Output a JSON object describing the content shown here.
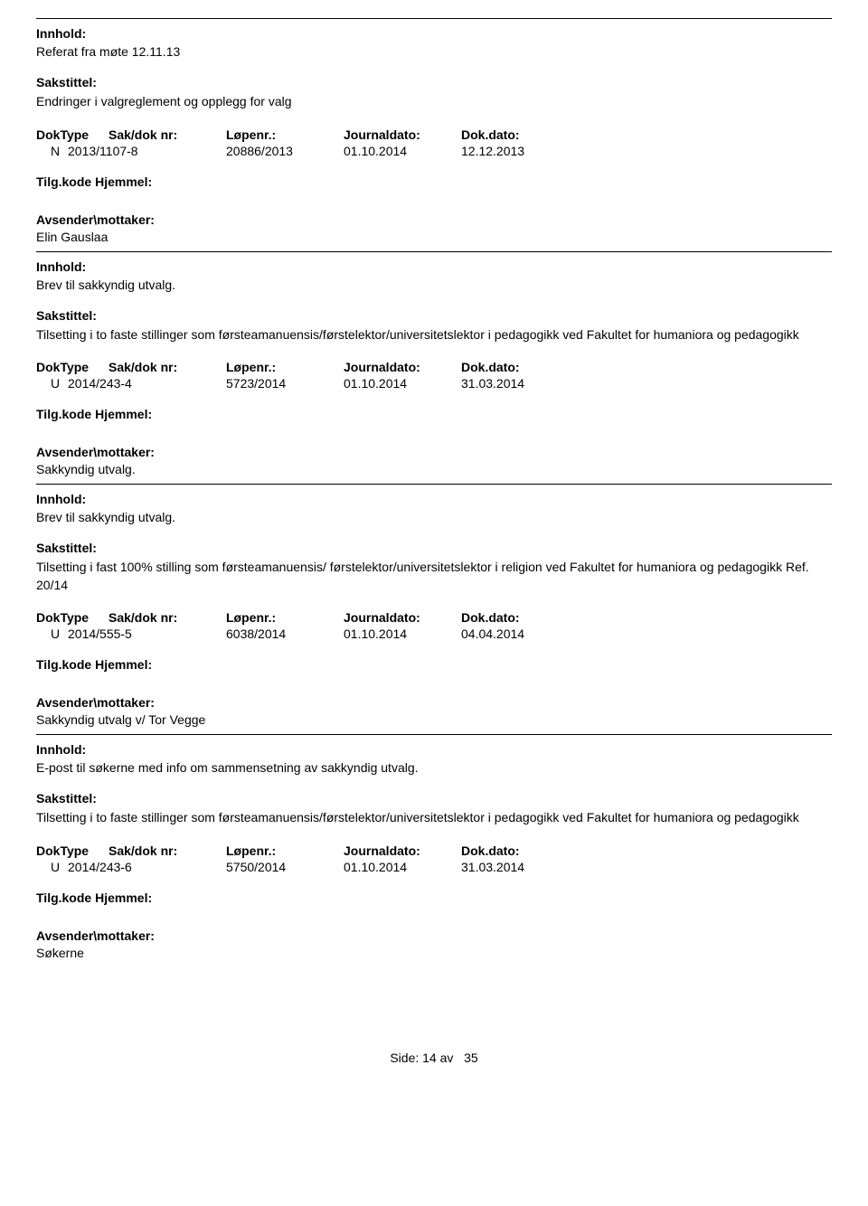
{
  "labels": {
    "innhold": "Innhold:",
    "sakstittel": "Sakstittel:",
    "doktype": "DokType",
    "sakdoknr": "Sak/dok nr:",
    "lopenr": "Løpenr.:",
    "journaldato": "Journaldato:",
    "dokdato": "Dok.dato:",
    "tilgkode": "Tilg.kode",
    "hjemmel": "Hjemmel:",
    "avsender": "Avsender\\mottaker:"
  },
  "entries": [
    {
      "innhold": "Referat fra møte 12.11.13",
      "sakstittel": "Endringer i valgreglement og opplegg for valg",
      "doktype": "N",
      "sakdoknr": "2013/1107-8",
      "lopenr": "20886/2013",
      "journaldato": "01.10.2014",
      "dokdato": "12.12.2013",
      "avsender": "Elin Gauslaa"
    },
    {
      "innhold": "Brev til sakkyndig utvalg.",
      "sakstittel": "Tilsetting i to faste stillinger som førsteamanuensis/førstelektor/universitetslektor i pedagogikk ved Fakultet for humaniora og pedagogikk",
      "doktype": "U",
      "sakdoknr": "2014/243-4",
      "lopenr": "5723/2014",
      "journaldato": "01.10.2014",
      "dokdato": "31.03.2014",
      "avsender": "Sakkyndig utvalg."
    },
    {
      "innhold": "Brev til sakkyndig utvalg.",
      "sakstittel": "Tilsetting i  fast 100%  stilling som førsteamanuensis/ førstelektor/universitetslektor i religion ved Fakultet for humaniora og pedagogikk Ref. 20/14",
      "doktype": "U",
      "sakdoknr": "2014/555-5",
      "lopenr": "6038/2014",
      "journaldato": "01.10.2014",
      "dokdato": "04.04.2014",
      "avsender": "Sakkyndig utvalg v/ Tor Vegge"
    },
    {
      "innhold": "E-post til søkerne med info om sammensetning av sakkyndig utvalg.",
      "sakstittel": "Tilsetting i to faste stillinger som førsteamanuensis/førstelektor/universitetslektor i pedagogikk ved Fakultet for humaniora og pedagogikk",
      "doktype": "U",
      "sakdoknr": "2014/243-6",
      "lopenr": "5750/2014",
      "journaldato": "01.10.2014",
      "dokdato": "31.03.2014",
      "avsender": "Søkerne"
    }
  ],
  "footer": {
    "prefix": "Side:",
    "page": "14",
    "av": "av",
    "total": "35"
  }
}
